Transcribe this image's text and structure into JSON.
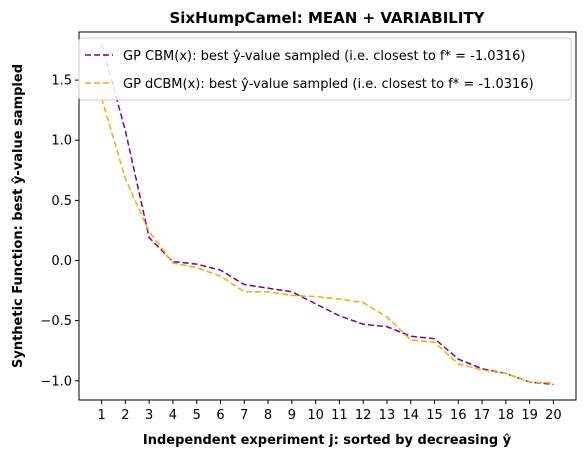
{
  "chart_data": {
    "type": "line",
    "title": "SixHumpCamel: MEAN + VARIABILITY",
    "xlabel": "Independent experiment j: sorted by decreasing ŷ",
    "ylabel": "Synthetic Function: best ŷ-value sampled",
    "x": [
      1,
      2,
      3,
      4,
      5,
      6,
      7,
      8,
      9,
      10,
      11,
      12,
      13,
      14,
      15,
      16,
      17,
      18,
      19,
      20
    ],
    "x_ticks": [
      "1",
      "2",
      "3",
      "4",
      "5",
      "6",
      "7",
      "8",
      "9",
      "10",
      "11",
      "12",
      "13",
      "14",
      "15",
      "16",
      "17",
      "18",
      "19",
      "20"
    ],
    "y_ticks": [
      1.5,
      1.0,
      0.5,
      0.0,
      -0.5,
      -1.0
    ],
    "y_tick_labels": [
      "1.5",
      "1.0",
      "0.5",
      "0.0",
      "−0.5",
      "−1.0"
    ],
    "xlim": [
      0.05,
      20.95
    ],
    "ylim": [
      -1.16,
      1.9
    ],
    "grid": false,
    "legend_position": "top-right",
    "series": [
      {
        "name": "GP CBM(x):   best ŷ-value sampled (i.e. closest to f* = -1.0316)",
        "color": "#800080",
        "dash": "dashed",
        "values": [
          1.8,
          1.08,
          0.19,
          -0.01,
          -0.03,
          -0.08,
          -0.2,
          -0.23,
          -0.26,
          -0.36,
          -0.46,
          -0.53,
          -0.55,
          -0.63,
          -0.65,
          -0.82,
          -0.9,
          -0.94,
          -1.01,
          -1.03
        ]
      },
      {
        "name": "GP dCBM(x): best ŷ-value sampled (i.e. closest to f* = -1.0316)",
        "color": "#FFA500",
        "dash": "dashed",
        "values": [
          1.35,
          0.68,
          0.24,
          -0.02,
          -0.06,
          -0.13,
          -0.26,
          -0.26,
          -0.29,
          -0.3,
          -0.32,
          -0.35,
          -0.47,
          -0.66,
          -0.68,
          -0.86,
          -0.91,
          -0.94,
          -1.01,
          -1.02
        ]
      }
    ]
  }
}
